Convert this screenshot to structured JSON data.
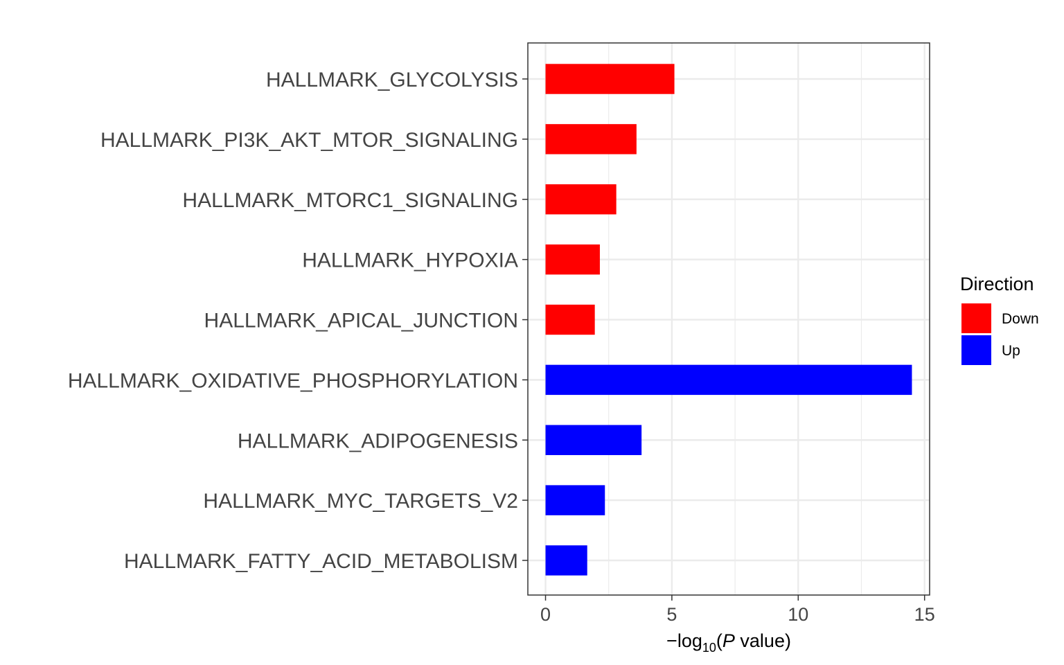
{
  "chart_data": {
    "type": "bar",
    "orientation": "horizontal",
    "categories": [
      "HALLMARK_GLYCOLYSIS",
      "HALLMARK_PI3K_AKT_MTOR_SIGNALING",
      "HALLMARK_MTORC1_SIGNALING",
      "HALLMARK_HYPOXIA",
      "HALLMARK_APICAL_JUNCTION",
      "HALLMARK_OXIDATIVE_PHOSPHORYLATION",
      "HALLMARK_ADIPOGENESIS",
      "HALLMARK_MYC_TARGETS_V2",
      "HALLMARK_FATTY_ACID_METABOLISM"
    ],
    "values": [
      5.1,
      3.6,
      2.8,
      2.15,
      1.95,
      14.5,
      3.8,
      2.35,
      1.65
    ],
    "direction": [
      "Down",
      "Down",
      "Down",
      "Down",
      "Down",
      "Up",
      "Up",
      "Up",
      "Up"
    ],
    "xlabel": {
      "prefix": "−log",
      "subscript": "10",
      "open": "(",
      "italic": "P",
      "rest": " value)"
    },
    "ylabel": "",
    "xlim": [
      -0.7,
      15.2
    ],
    "xticks": [
      0,
      5,
      10,
      15
    ],
    "grid": true,
    "legend": {
      "title": "Direction",
      "position": "right",
      "items": [
        {
          "label": "Down",
          "color": "#FF0000"
        },
        {
          "label": "Up",
          "color": "#0000FF"
        }
      ]
    },
    "colors": {
      "Down": "#FF0000",
      "Up": "#0000FF"
    }
  }
}
